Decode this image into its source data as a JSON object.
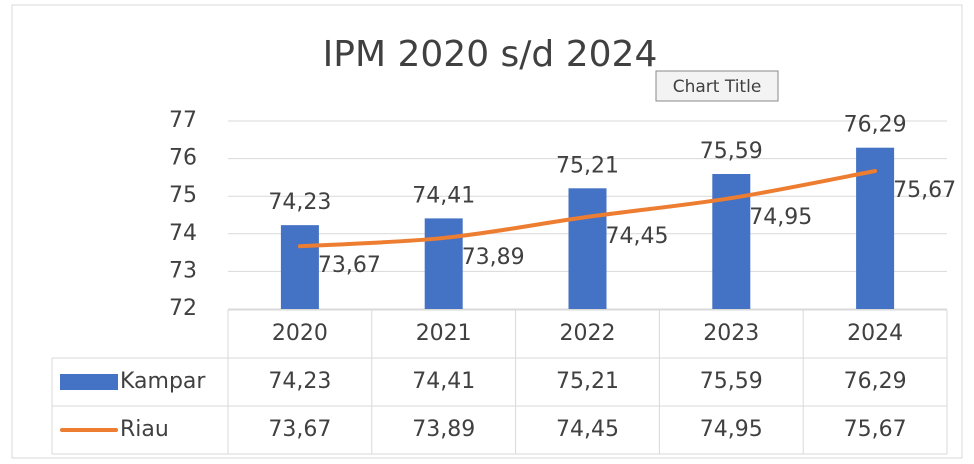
{
  "chart_data": {
    "type": "bar",
    "title": "IPM 2020 s/d 2024",
    "tooltip": "Chart Title",
    "categories": [
      "2020",
      "2021",
      "2022",
      "2023",
      "2024"
    ],
    "series": [
      {
        "name": "Kampar",
        "type": "bar",
        "color": "#4472c4",
        "values": [
          74.23,
          74.41,
          75.21,
          75.59,
          76.29
        ],
        "value_labels": [
          "74,23",
          "74,41",
          "75,21",
          "75,59",
          "76,29"
        ]
      },
      {
        "name": "Riau",
        "type": "line",
        "color": "#ed7d31",
        "values": [
          73.67,
          73.89,
          74.45,
          74.95,
          75.67
        ],
        "value_labels": [
          "73,67",
          "73,89",
          "74,45",
          "74,95",
          "75,67"
        ]
      }
    ],
    "ylim": [
      72,
      77
    ],
    "yticks": [
      72,
      73,
      74,
      75,
      76,
      77
    ],
    "grid": true,
    "data_table": true
  }
}
